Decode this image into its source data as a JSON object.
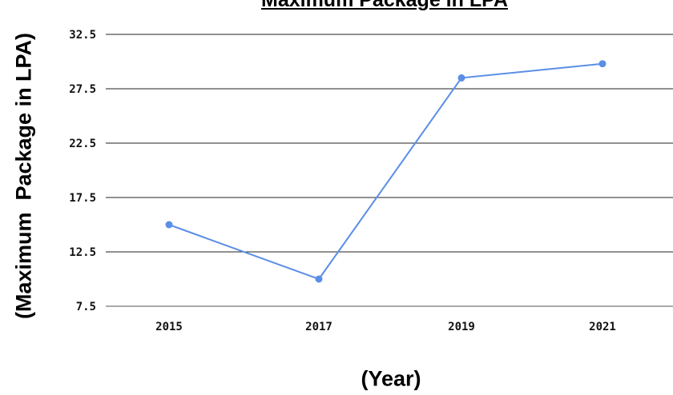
{
  "chart_data": {
    "type": "line",
    "title": "Maximum Package in LPA",
    "xlabel": "(Year)",
    "ylabel": "(Maximum  Package in LPA)",
    "categories": [
      "2015",
      "2017",
      "2019",
      "2021"
    ],
    "series": [
      {
        "values": [
          15.0,
          10.0,
          28.5,
          29.8
        ]
      }
    ],
    "ylim": [
      7.5,
      32.5
    ],
    "yticks": [
      "7.5",
      "12.5",
      "17.5",
      "22.5",
      "27.5",
      "32.5"
    ],
    "grid": "horizontal",
    "line_color": "#5b8ee6",
    "grid_color": "#222222"
  }
}
